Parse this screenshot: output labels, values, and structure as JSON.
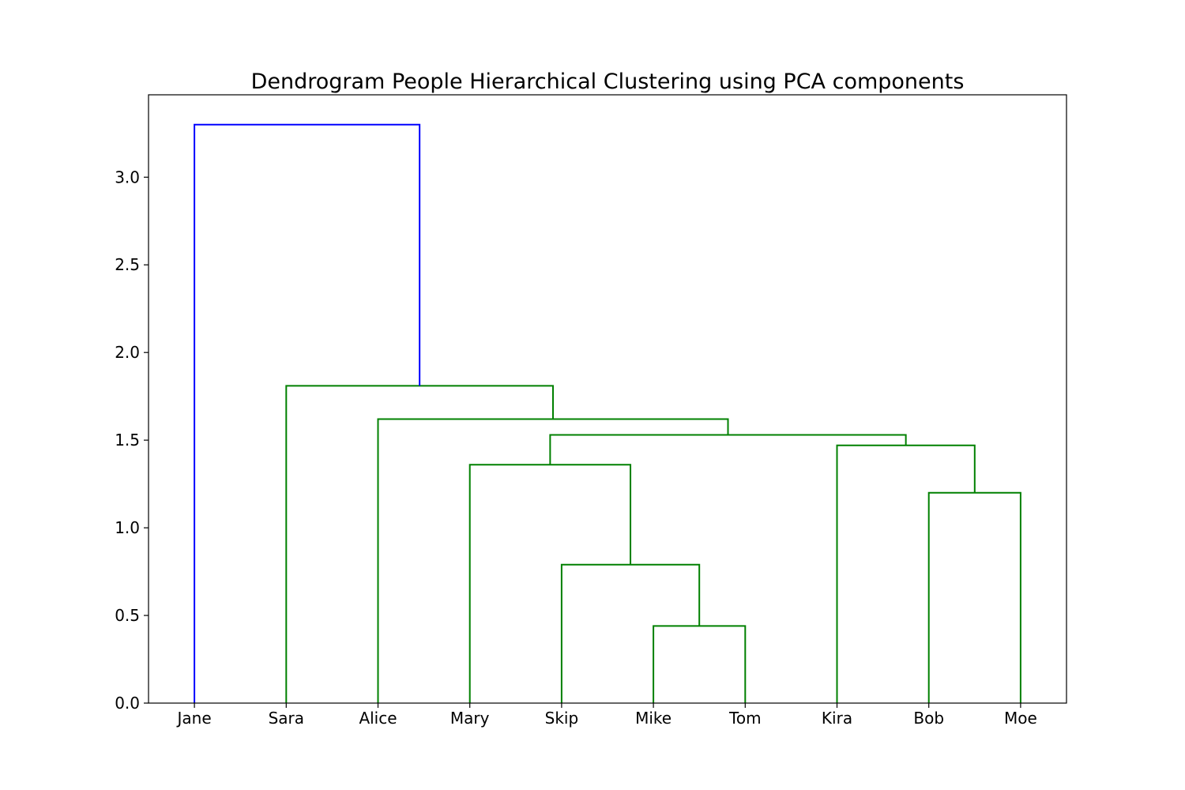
{
  "chart_data": {
    "type": "dendrogram",
    "title": "Dendrogram People Hierarchical Clustering using PCA components",
    "xlabel": "",
    "ylabel": "",
    "leaves": [
      "Jane",
      "Sara",
      "Alice",
      "Mary",
      "Skip",
      "Mike",
      "Tom",
      "Kira",
      "Bob",
      "Moe"
    ],
    "ylim": [
      0,
      3.47
    ],
    "yticks": [
      0.0,
      0.5,
      1.0,
      1.5,
      2.0,
      2.5,
      3.0
    ],
    "ytick_labels": [
      "0.0",
      "0.5",
      "1.0",
      "1.5",
      "2.0",
      "2.5",
      "3.0"
    ],
    "grid": false,
    "colors": {
      "root_link": "#0000ff",
      "cluster_link": "#008000",
      "axes": "#000000"
    },
    "merges": [
      {
        "left": "Mike",
        "right": "Tom",
        "height": 0.44,
        "color": "cluster_link"
      },
      {
        "left": "Skip",
        "right": "Mike+Tom",
        "height": 0.79,
        "color": "cluster_link"
      },
      {
        "left": "Bob",
        "right": "Moe",
        "height": 1.2,
        "color": "cluster_link"
      },
      {
        "left": "Mary",
        "right": "Skip+Mike+Tom",
        "height": 1.36,
        "color": "cluster_link"
      },
      {
        "left": "Kira",
        "right": "Bob+Moe",
        "height": 1.47,
        "color": "cluster_link"
      },
      {
        "left": "Mary+Skip+Mike+Tom",
        "right": "Kira+Bob+Moe",
        "height": 1.53,
        "color": "cluster_link"
      },
      {
        "left": "Alice",
        "right": "Mary+Skip+Mike+Tom+Kira+Bob+Moe",
        "height": 1.62,
        "color": "cluster_link"
      },
      {
        "left": "Sara",
        "right": "Alice+Mary+Skip+Mike+Tom+Kira+Bob+Moe",
        "height": 1.81,
        "color": "cluster_link"
      },
      {
        "left": "Jane",
        "right": "Sara+Alice+Mary+Skip+Mike+Tom+Kira+Bob+Moe",
        "height": 3.3,
        "color": "root_link"
      }
    ]
  }
}
